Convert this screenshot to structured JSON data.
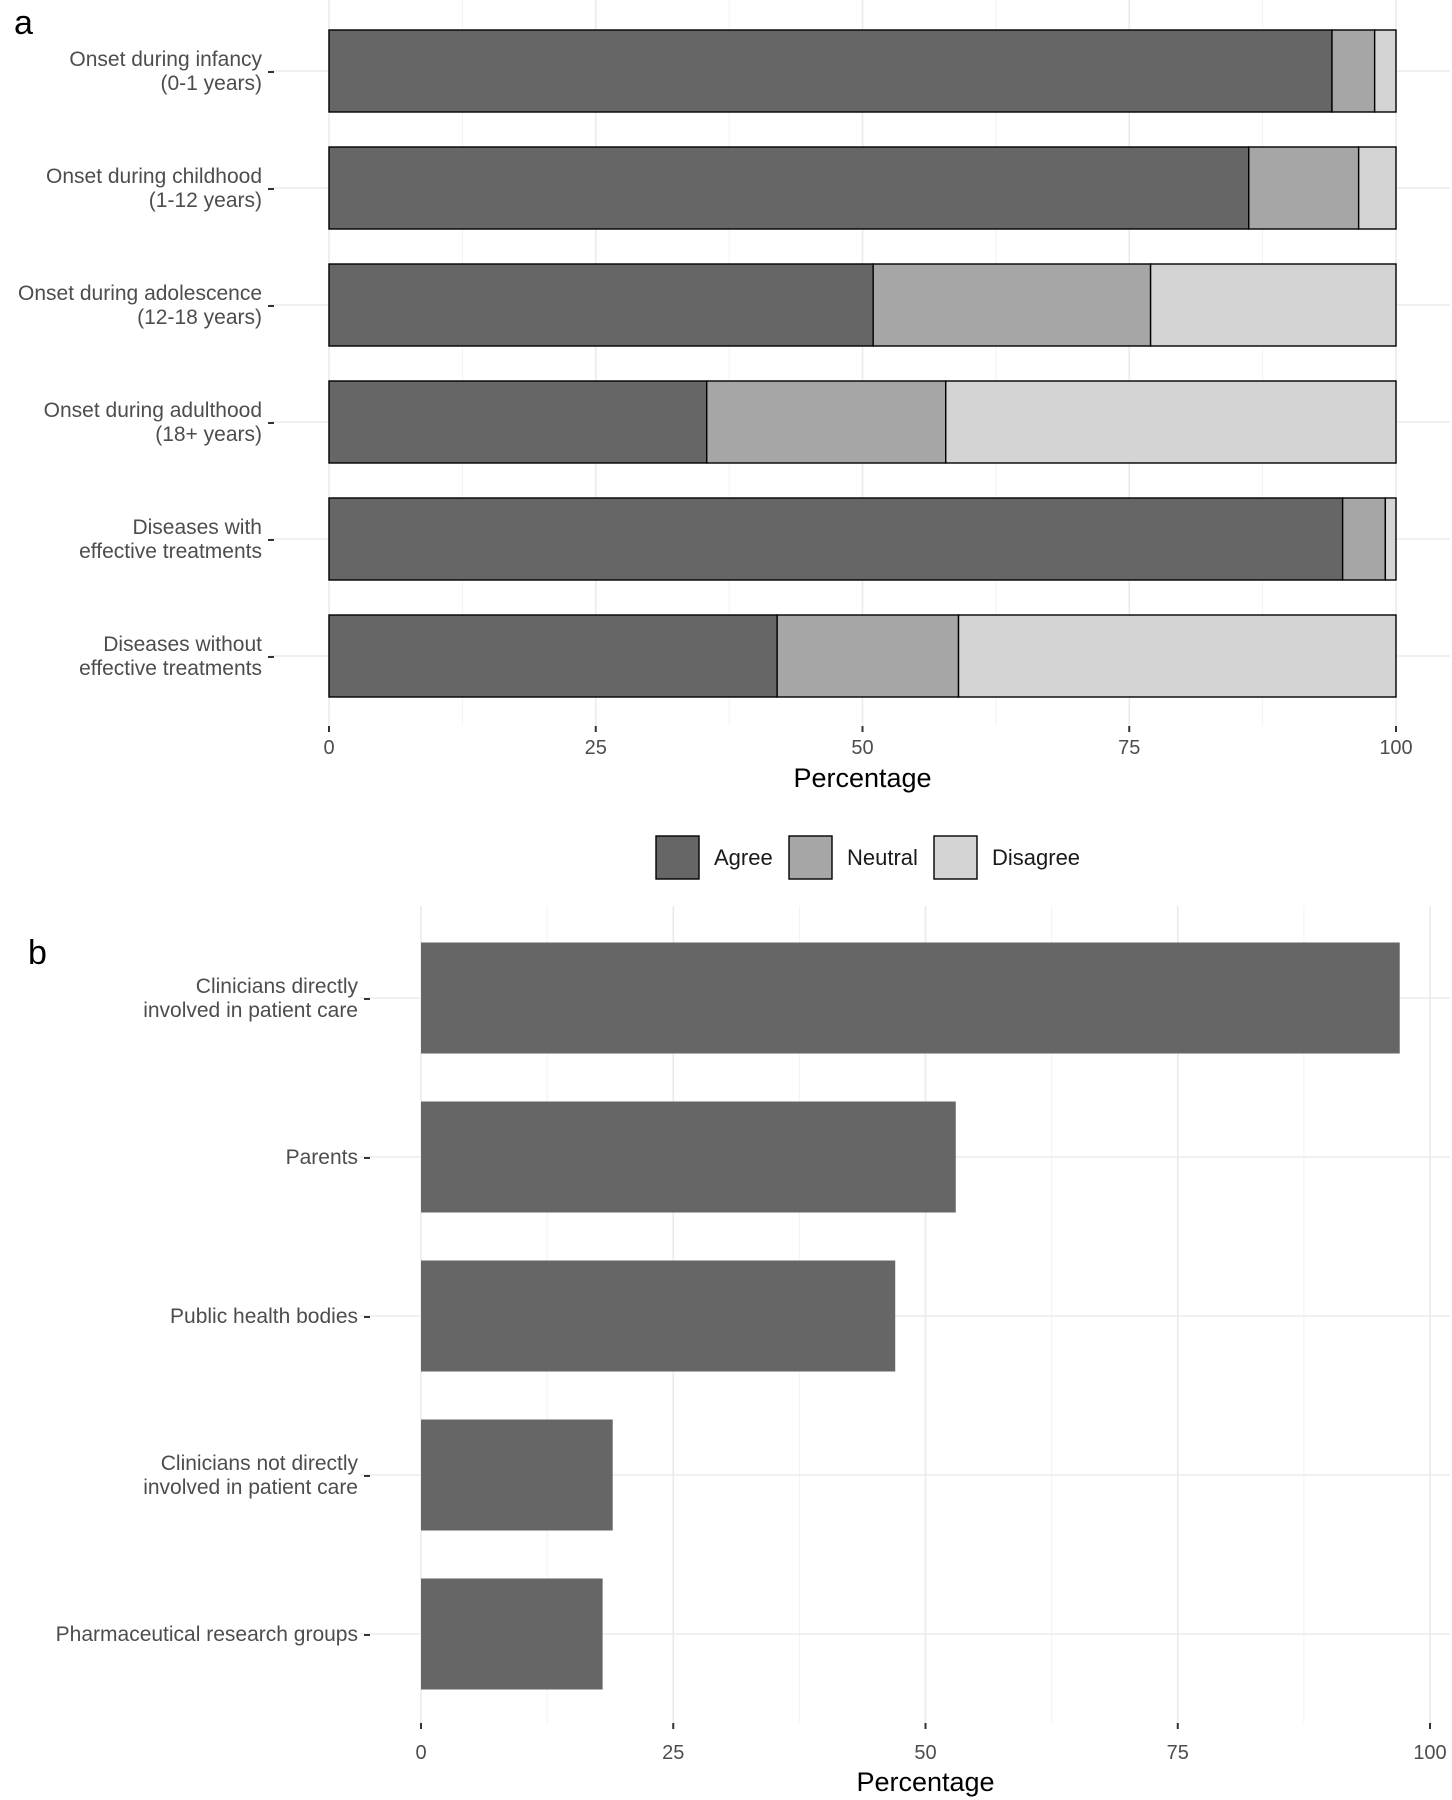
{
  "chart_data": [
    {
      "type": "bar",
      "orientation": "horizontal",
      "stacked": true,
      "panel_label": "a",
      "categories": [
        [
          "Onset during infancy",
          "(0-1 years)"
        ],
        [
          "Onset during childhood",
          "(1-12 years)"
        ],
        [
          "Onset during adolescence",
          "(12-18 years)"
        ],
        [
          "Onset during adulthood",
          "(18+ years)"
        ],
        [
          "Diseases with",
          "effective treatments"
        ],
        [
          "Diseases without",
          "effective treatments"
        ]
      ],
      "series": [
        {
          "name": "Agree",
          "color": "#666666",
          "values": [
            94,
            86.2,
            51,
            35.4,
            95,
            42
          ]
        },
        {
          "name": "Neutral",
          "color": "#a6a6a6",
          "values": [
            4,
            10.3,
            26,
            22.4,
            4,
            17
          ]
        },
        {
          "name": "Disagree",
          "color": "#d4d4d4",
          "values": [
            2,
            3.5,
            23,
            42.2,
            1,
            41
          ]
        }
      ],
      "xlabel": "Percentage",
      "ylabel": "",
      "xlim": [
        0,
        100
      ],
      "xticks": [
        0,
        25,
        50,
        75,
        100
      ],
      "grid": true,
      "legend_position": "bottom"
    },
    {
      "type": "bar",
      "orientation": "horizontal",
      "stacked": false,
      "panel_label": "b",
      "categories": [
        [
          "Clinicians directly",
          "involved in patient care"
        ],
        [
          "Parents"
        ],
        [
          "Public health bodies"
        ],
        [
          "Clinicians not directly",
          "involved in patient care"
        ],
        [
          "Pharmaceutical research groups"
        ]
      ],
      "values": [
        97,
        53,
        47,
        19,
        18
      ],
      "bar_color": "#666666",
      "xlabel": "Percentage",
      "ylabel": "",
      "xlim": [
        0,
        100
      ],
      "xticks": [
        0,
        25,
        50,
        75,
        100
      ],
      "grid": true
    }
  ]
}
